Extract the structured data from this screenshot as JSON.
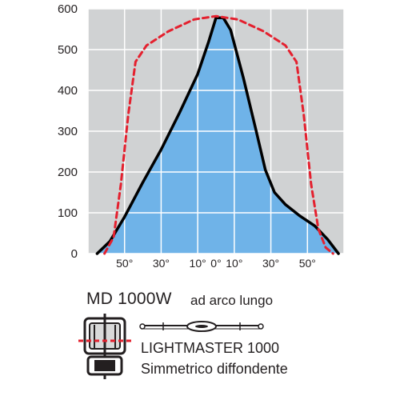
{
  "chart_data": {
    "type": "line",
    "title": "",
    "xlabel": "",
    "ylabel": "",
    "ylim": [
      0,
      600
    ],
    "yticks": [
      "0",
      "100",
      "200",
      "300",
      "400",
      "500",
      "600"
    ],
    "xtick_labels": [
      "50°",
      "30°",
      "10°",
      "0°",
      "10°",
      "30°",
      "50°"
    ],
    "xtick_angles": [
      -50,
      -30,
      -10,
      0,
      10,
      30,
      50
    ],
    "xlim": [
      -70,
      70
    ],
    "grid": true,
    "legend": "none",
    "series": [
      {
        "style": "solid-filled",
        "color": "#000000",
        "fill": "#6fb3e8",
        "points": [
          [
            -65,
            0
          ],
          [
            -58,
            30
          ],
          [
            -50,
            90
          ],
          [
            -40,
            175
          ],
          [
            -30,
            255
          ],
          [
            -20,
            345
          ],
          [
            -10,
            440
          ],
          [
            -4,
            520
          ],
          [
            0,
            578
          ],
          [
            4,
            578
          ],
          [
            8,
            548
          ],
          [
            15,
            430
          ],
          [
            22,
            300
          ],
          [
            27,
            205
          ],
          [
            32,
            150
          ],
          [
            38,
            120
          ],
          [
            46,
            92
          ],
          [
            54,
            68
          ],
          [
            61,
            35
          ],
          [
            67,
            0
          ]
        ]
      },
      {
        "style": "dashed",
        "color": "#e4202e",
        "points": [
          [
            -61,
            0
          ],
          [
            -56,
            40
          ],
          [
            -52,
            170
          ],
          [
            -48,
            340
          ],
          [
            -44,
            470
          ],
          [
            -38,
            510
          ],
          [
            -26,
            545
          ],
          [
            -12,
            574
          ],
          [
            0,
            582
          ],
          [
            12,
            574
          ],
          [
            26,
            545
          ],
          [
            38,
            510
          ],
          [
            44,
            470
          ],
          [
            48,
            340
          ],
          [
            52,
            170
          ],
          [
            56,
            60
          ],
          [
            60,
            15
          ],
          [
            64,
            0
          ]
        ]
      }
    ]
  },
  "caption": {
    "model": "MD 1000W",
    "lamp_type": "ad arco lungo",
    "product_name": "LIGHTMASTER 1000",
    "product_desc": "Simmetrico diffondente"
  },
  "colors": {
    "fill": "#6fb3e8",
    "grid": "#ffffff",
    "background": "#d0d2d3",
    "curve": "#000000",
    "dashed": "#e4202e",
    "text": "#231f20"
  },
  "icons": [
    "floodlight-fixture-icon",
    "linear-lamp-icon"
  ]
}
